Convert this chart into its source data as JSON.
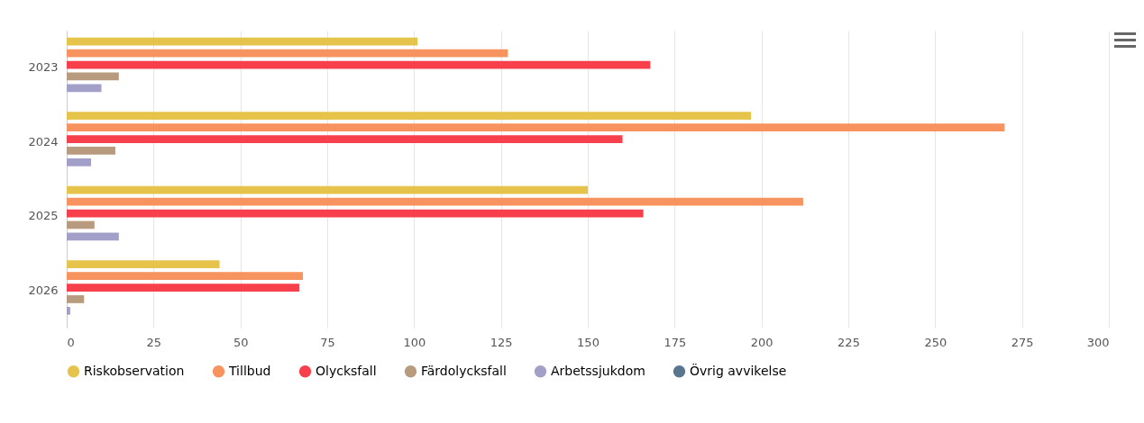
{
  "chart_data": {
    "type": "bar",
    "orientation": "horizontal",
    "categories": [
      "2023",
      "2024",
      "2025",
      "2026"
    ],
    "series": [
      {
        "name": "Riskobservation",
        "color": "#e6c34b",
        "values": [
          101,
          197,
          150,
          44
        ]
      },
      {
        "name": "Tillbud",
        "color": "#f7935e",
        "values": [
          127,
          270,
          212,
          68
        ]
      },
      {
        "name": "Olycksfall",
        "color": "#f7404b",
        "values": [
          168,
          160,
          166,
          67
        ]
      },
      {
        "name": "Färdolycksfall",
        "color": "#b89a7e",
        "values": [
          15,
          14,
          8,
          5
        ]
      },
      {
        "name": "Arbetssjukdom",
        "color": "#a29fc8",
        "values": [
          10,
          7,
          15,
          1
        ]
      },
      {
        "name": "Övrig avvikelse",
        "color": "#5a7590",
        "values": [
          0,
          0,
          0,
          0
        ]
      }
    ],
    "xlim": [
      0,
      300
    ],
    "xticks": [
      0,
      25,
      50,
      75,
      100,
      125,
      150,
      175,
      200,
      225,
      250,
      275,
      300
    ],
    "grid": "x",
    "legend": "bottom"
  }
}
